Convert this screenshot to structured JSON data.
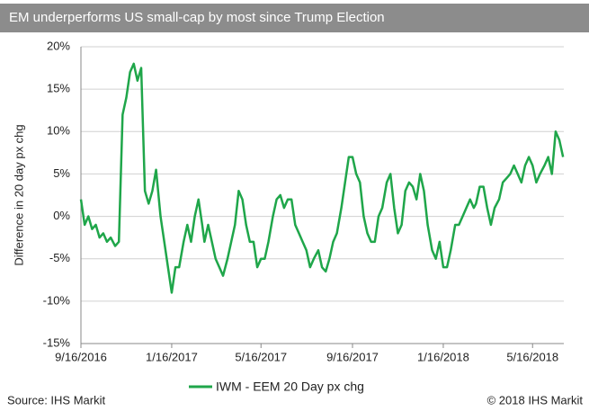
{
  "chart_data": {
    "type": "line",
    "title": "EM underperforms US small-cap by most since Trump Election",
    "y_label": "Difference in 20 day px chg",
    "source": "Source: IHS Markit",
    "copyright": "© 2018 IHS Markit",
    "xlim": [
      "2016-09-16",
      "2018-06-27"
    ],
    "xticks": [
      {
        "value": "2016-09-16",
        "label": "9/16/2016"
      },
      {
        "value": "2017-01-16",
        "label": "1/16/2017"
      },
      {
        "value": "2017-05-16",
        "label": "5/16/2017"
      },
      {
        "value": "2017-09-16",
        "label": "9/16/2017"
      },
      {
        "value": "2018-01-16",
        "label": "1/16/2018"
      },
      {
        "value": "2018-05-16",
        "label": "5/16/2018"
      }
    ],
    "ylim": [
      -15,
      20
    ],
    "yticks": [
      {
        "value": -15,
        "label": "-15%"
      },
      {
        "value": -10,
        "label": "-10%"
      },
      {
        "value": -5,
        "label": "-5%"
      },
      {
        "value": 0,
        "label": "0%"
      },
      {
        "value": 5,
        "label": "5%"
      },
      {
        "value": 10,
        "label": "10%"
      },
      {
        "value": 15,
        "label": "15%"
      },
      {
        "value": 20,
        "label": "20%"
      }
    ],
    "grid": true,
    "legend": "bottom",
    "x": [
      "2016-09-16",
      "2016-09-21",
      "2016-09-26",
      "2016-10-01",
      "2016-10-06",
      "2016-10-11",
      "2016-10-16",
      "2016-10-21",
      "2016-10-26",
      "2016-11-01",
      "2016-11-06",
      "2016-11-11",
      "2016-11-16",
      "2016-11-21",
      "2016-11-26",
      "2016-12-01",
      "2016-12-06",
      "2016-12-11",
      "2016-12-16",
      "2016-12-21",
      "2016-12-26",
      "2017-01-01",
      "2017-01-06",
      "2017-01-11",
      "2017-01-16",
      "2017-01-21",
      "2017-01-26",
      "2017-02-01",
      "2017-02-06",
      "2017-02-11",
      "2017-02-16",
      "2017-02-21",
      "2017-02-26",
      "2017-03-01",
      "2017-03-06",
      "2017-03-11",
      "2017-03-16",
      "2017-03-21",
      "2017-03-26",
      "2017-04-01",
      "2017-04-06",
      "2017-04-11",
      "2017-04-16",
      "2017-04-21",
      "2017-04-26",
      "2017-05-01",
      "2017-05-06",
      "2017-05-11",
      "2017-05-16",
      "2017-05-21",
      "2017-05-26",
      "2017-06-01",
      "2017-06-06",
      "2017-06-11",
      "2017-06-16",
      "2017-06-21",
      "2017-06-26",
      "2017-07-01",
      "2017-07-06",
      "2017-07-11",
      "2017-07-16",
      "2017-07-21",
      "2017-07-26",
      "2017-08-01",
      "2017-08-06",
      "2017-08-11",
      "2017-08-16",
      "2017-08-21",
      "2017-08-26",
      "2017-09-01",
      "2017-09-06",
      "2017-09-11",
      "2017-09-16",
      "2017-09-21",
      "2017-09-26",
      "2017-10-01",
      "2017-10-06",
      "2017-10-11",
      "2017-10-16",
      "2017-10-21",
      "2017-10-26",
      "2017-11-01",
      "2017-11-06",
      "2017-11-11",
      "2017-11-16",
      "2017-11-21",
      "2017-11-26",
      "2017-12-01",
      "2017-12-06",
      "2017-12-11",
      "2017-12-16",
      "2017-12-21",
      "2017-12-26",
      "2018-01-01",
      "2018-01-06",
      "2018-01-11",
      "2018-01-16",
      "2018-01-21",
      "2018-01-26",
      "2018-02-01",
      "2018-02-06",
      "2018-02-11",
      "2018-02-16",
      "2018-02-21",
      "2018-02-26",
      "2018-03-01",
      "2018-03-06",
      "2018-03-11",
      "2018-03-16",
      "2018-03-21",
      "2018-03-26",
      "2018-04-01",
      "2018-04-06",
      "2018-04-11",
      "2018-04-16",
      "2018-04-21",
      "2018-04-26",
      "2018-05-01",
      "2018-05-06",
      "2018-05-11",
      "2018-05-16",
      "2018-05-21",
      "2018-05-26",
      "2018-06-01",
      "2018-06-06",
      "2018-06-11",
      "2018-06-16",
      "2018-06-21",
      "2018-06-26"
    ],
    "series": [
      {
        "name": "IWM - EEM 20 Day px chg",
        "color": "#1fa64a",
        "values": [
          2,
          -1,
          0,
          -1.5,
          -1,
          -2.5,
          -2,
          -3,
          -2.5,
          -3.5,
          -3,
          12,
          14,
          17,
          18,
          16,
          17.5,
          3,
          1.5,
          3,
          5.5,
          0,
          -3,
          -6,
          -9,
          -6,
          -6,
          -3,
          -1,
          -3,
          0,
          2,
          -1,
          -3,
          -1,
          -3,
          -5,
          -6,
          -7,
          -5,
          -3,
          -1,
          3,
          2,
          -1,
          -3,
          -3,
          -6,
          -5,
          -5,
          -3,
          0,
          2,
          2.5,
          1,
          2,
          2,
          -1,
          -2,
          -3,
          -4,
          -6,
          -5,
          -4,
          -6,
          -6.5,
          -5,
          -3,
          -2,
          1,
          4,
          7,
          7,
          5,
          4,
          0,
          -2,
          -3,
          -3,
          0,
          1,
          4,
          5,
          1,
          -2,
          -1,
          3,
          4,
          3.5,
          2,
          5,
          3,
          -1,
          -4,
          -5,
          -3,
          -6,
          -6,
          -4,
          -1,
          -1,
          0,
          1,
          2,
          1,
          1.5,
          3.5,
          3.5,
          1,
          -1,
          1,
          2,
          4,
          4.5,
          5,
          6,
          5,
          4,
          6,
          7,
          6,
          4,
          5,
          6,
          7,
          5,
          10,
          9,
          7
        ]
      }
    ]
  }
}
